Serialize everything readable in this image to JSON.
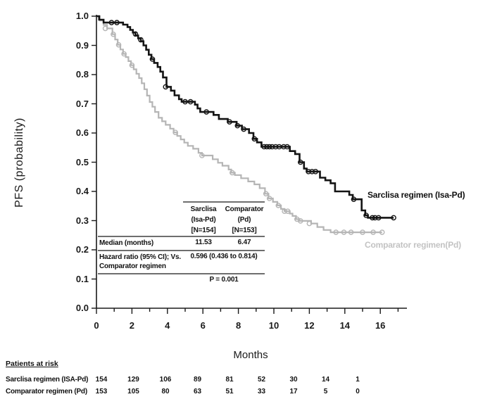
{
  "figure": {
    "y_axis_title": "PFS (probability)",
    "x_axis_title": "Months",
    "y_ticks": [
      "1.0",
      "0.9",
      "0.8",
      "0.7",
      "0.6",
      "0.5",
      "0.4",
      "0.3",
      "0.2",
      "0.1",
      "0.0"
    ],
    "x_ticks": [
      "0",
      "2",
      "4",
      "6",
      "8",
      "10",
      "12",
      "14",
      "16"
    ],
    "legend": {
      "sarclisa": "Sarclisa regimen (Isa-Pd)",
      "comparator": "Comparator regimen(Pd)"
    },
    "stats_table": {
      "col_sarclisa": {
        "line1": "Sarclisa",
        "line2": "(Isa-Pd)",
        "line3": "[N=154]"
      },
      "col_comparator": {
        "line1": "Comparator",
        "line2": "(Pd)",
        "line3": "[N=153]"
      },
      "median_label": "Median (months)",
      "median_sarclisa": "11.53",
      "median_comparator": "6.47",
      "hr_label_line1": "Hazard ratio (95% CI); Vs.",
      "hr_label_line2": "Comparator regimen",
      "hr_value": "0.596 (0.436 to 0.814)",
      "p_value": "P = 0.001"
    },
    "at_risk": {
      "heading": "Patients at risk",
      "rows": [
        {
          "label": "Sarclisa regimen (ISA-Pd)",
          "counts": [
            "154",
            "129",
            "106",
            "89",
            "81",
            "52",
            "30",
            "14",
            "1"
          ]
        },
        {
          "label": "Comparator regimen (Pd)",
          "counts": [
            "153",
            "105",
            "80",
            "63",
            "51",
            "33",
            "17",
            "5",
            "0"
          ]
        }
      ]
    }
  },
  "chart_data": {
    "type": "line",
    "subtype": "kaplan-meier-step",
    "title": "",
    "xlabel": "Months",
    "ylabel": "PFS (probability)",
    "xlim": [
      0,
      17.4
    ],
    "ylim": [
      0,
      1.0
    ],
    "x_tick_values": [
      0,
      2,
      4,
      6,
      8,
      10,
      12,
      14,
      16
    ],
    "y_tick_values": [
      1.0,
      0.9,
      0.8,
      0.7,
      0.6,
      0.5,
      0.4,
      0.3,
      0.2,
      0.1,
      0.0
    ],
    "grid": false,
    "legend_position": "right-of-curve-ends",
    "hazard_ratio": "0.596 (0.436 to 0.814)",
    "p_value": "P = 0.001",
    "series": [
      {
        "name": "Sarclisa regimen (Isa-Pd)",
        "n": 154,
        "median_months": 11.53,
        "color": "#141414",
        "stroke_width": 2.6,
        "steps": [
          [
            0,
            1.0
          ],
          [
            0.15,
            0.988
          ],
          [
            0.4,
            0.978
          ],
          [
            1.5,
            0.971
          ],
          [
            1.75,
            0.963
          ],
          [
            1.9,
            0.953
          ],
          [
            2.05,
            0.944
          ],
          [
            2.2,
            0.934
          ],
          [
            2.35,
            0.924
          ],
          [
            2.5,
            0.914
          ],
          [
            2.65,
            0.9
          ],
          [
            2.8,
            0.885
          ],
          [
            2.95,
            0.868
          ],
          [
            3.1,
            0.853
          ],
          [
            3.25,
            0.84
          ],
          [
            3.45,
            0.826
          ],
          [
            3.6,
            0.81
          ],
          [
            3.75,
            0.79
          ],
          [
            3.95,
            0.758
          ],
          [
            4.2,
            0.745
          ],
          [
            4.4,
            0.729
          ],
          [
            4.65,
            0.716
          ],
          [
            4.8,
            0.707
          ],
          [
            5.55,
            0.697
          ],
          [
            5.7,
            0.684
          ],
          [
            5.85,
            0.672
          ],
          [
            6.6,
            0.662
          ],
          [
            6.9,
            0.648
          ],
          [
            7.4,
            0.638
          ],
          [
            7.9,
            0.625
          ],
          [
            8.2,
            0.613
          ],
          [
            8.6,
            0.6
          ],
          [
            8.85,
            0.58
          ],
          [
            9.05,
            0.568
          ],
          [
            9.3,
            0.553
          ],
          [
            10.9,
            0.538
          ],
          [
            11.2,
            0.528
          ],
          [
            11.45,
            0.5
          ],
          [
            11.7,
            0.478
          ],
          [
            11.85,
            0.468
          ],
          [
            12.6,
            0.447
          ],
          [
            12.9,
            0.438
          ],
          [
            13.2,
            0.428
          ],
          [
            13.45,
            0.4
          ],
          [
            14.25,
            0.388
          ],
          [
            14.45,
            0.373
          ],
          [
            14.95,
            0.335
          ],
          [
            15.15,
            0.318
          ],
          [
            15.3,
            0.31
          ],
          [
            16.75,
            0.31
          ]
        ],
        "censor_marks": [
          [
            0.85,
            0.978
          ],
          [
            1.15,
            0.978
          ],
          [
            2.2,
            0.939
          ],
          [
            2.5,
            0.919
          ],
          [
            3.15,
            0.853
          ],
          [
            3.9,
            0.758
          ],
          [
            5.0,
            0.707
          ],
          [
            5.3,
            0.707
          ],
          [
            6.2,
            0.672
          ],
          [
            7.5,
            0.638
          ],
          [
            7.95,
            0.625
          ],
          [
            8.3,
            0.613
          ],
          [
            8.9,
            0.58
          ],
          [
            9.45,
            0.553
          ],
          [
            9.6,
            0.553
          ],
          [
            9.75,
            0.553
          ],
          [
            9.9,
            0.553
          ],
          [
            10.1,
            0.553
          ],
          [
            10.3,
            0.553
          ],
          [
            10.55,
            0.553
          ],
          [
            10.75,
            0.553
          ],
          [
            11.5,
            0.5
          ],
          [
            11.95,
            0.468
          ],
          [
            12.15,
            0.468
          ],
          [
            12.35,
            0.468
          ],
          [
            14.5,
            0.373
          ],
          [
            15.2,
            0.318
          ],
          [
            15.55,
            0.31
          ],
          [
            15.7,
            0.31
          ],
          [
            15.9,
            0.31
          ],
          [
            16.75,
            0.31
          ]
        ]
      },
      {
        "name": "Comparator regimen (Pd)",
        "n": 153,
        "median_months": 6.47,
        "color": "#b5b5b5",
        "stroke_width": 2.2,
        "steps": [
          [
            0,
            1.0
          ],
          [
            0.2,
            0.985
          ],
          [
            0.4,
            0.97
          ],
          [
            0.6,
            0.958
          ],
          [
            0.9,
            0.938
          ],
          [
            1.05,
            0.92
          ],
          [
            1.2,
            0.902
          ],
          [
            1.35,
            0.886
          ],
          [
            1.5,
            0.871
          ],
          [
            1.65,
            0.86
          ],
          [
            1.8,
            0.846
          ],
          [
            1.95,
            0.832
          ],
          [
            2.1,
            0.818
          ],
          [
            2.25,
            0.803
          ],
          [
            2.4,
            0.788
          ],
          [
            2.55,
            0.77
          ],
          [
            2.7,
            0.75
          ],
          [
            2.85,
            0.728
          ],
          [
            3.0,
            0.706
          ],
          [
            3.15,
            0.69
          ],
          [
            3.3,
            0.672
          ],
          [
            3.5,
            0.652
          ],
          [
            3.7,
            0.64
          ],
          [
            3.9,
            0.628
          ],
          [
            4.15,
            0.615
          ],
          [
            4.35,
            0.602
          ],
          [
            4.55,
            0.59
          ],
          [
            4.75,
            0.578
          ],
          [
            4.95,
            0.567
          ],
          [
            5.15,
            0.556
          ],
          [
            5.45,
            0.546
          ],
          [
            5.75,
            0.532
          ],
          [
            5.95,
            0.523
          ],
          [
            6.55,
            0.51
          ],
          [
            6.85,
            0.498
          ],
          [
            7.1,
            0.488
          ],
          [
            7.45,
            0.475
          ],
          [
            7.6,
            0.464
          ],
          [
            7.8,
            0.456
          ],
          [
            8.15,
            0.445
          ],
          [
            8.55,
            0.434
          ],
          [
            8.9,
            0.424
          ],
          [
            9.2,
            0.411
          ],
          [
            9.5,
            0.392
          ],
          [
            9.7,
            0.376
          ],
          [
            9.95,
            0.364
          ],
          [
            10.2,
            0.352
          ],
          [
            10.4,
            0.34
          ],
          [
            10.6,
            0.332
          ],
          [
            10.9,
            0.324
          ],
          [
            11.05,
            0.316
          ],
          [
            11.25,
            0.305
          ],
          [
            11.45,
            0.299
          ],
          [
            12.1,
            0.29
          ],
          [
            12.45,
            0.278
          ],
          [
            12.8,
            0.268
          ],
          [
            13.2,
            0.26
          ],
          [
            16.1,
            0.26
          ]
        ],
        "censor_marks": [
          [
            0.5,
            0.958
          ],
          [
            0.95,
            0.938
          ],
          [
            1.25,
            0.902
          ],
          [
            1.55,
            0.871
          ],
          [
            2.0,
            0.832
          ],
          [
            4.45,
            0.602
          ],
          [
            5.95,
            0.523
          ],
          [
            7.65,
            0.464
          ],
          [
            9.55,
            0.392
          ],
          [
            9.75,
            0.376
          ],
          [
            10.25,
            0.352
          ],
          [
            10.6,
            0.332
          ],
          [
            10.78,
            0.332
          ],
          [
            11.3,
            0.305
          ],
          [
            11.5,
            0.299
          ],
          [
            12.0,
            0.29
          ],
          [
            13.5,
            0.26
          ],
          [
            13.95,
            0.26
          ],
          [
            14.35,
            0.26
          ],
          [
            15.0,
            0.26
          ],
          [
            15.6,
            0.26
          ],
          [
            16.1,
            0.26
          ]
        ]
      }
    ]
  }
}
